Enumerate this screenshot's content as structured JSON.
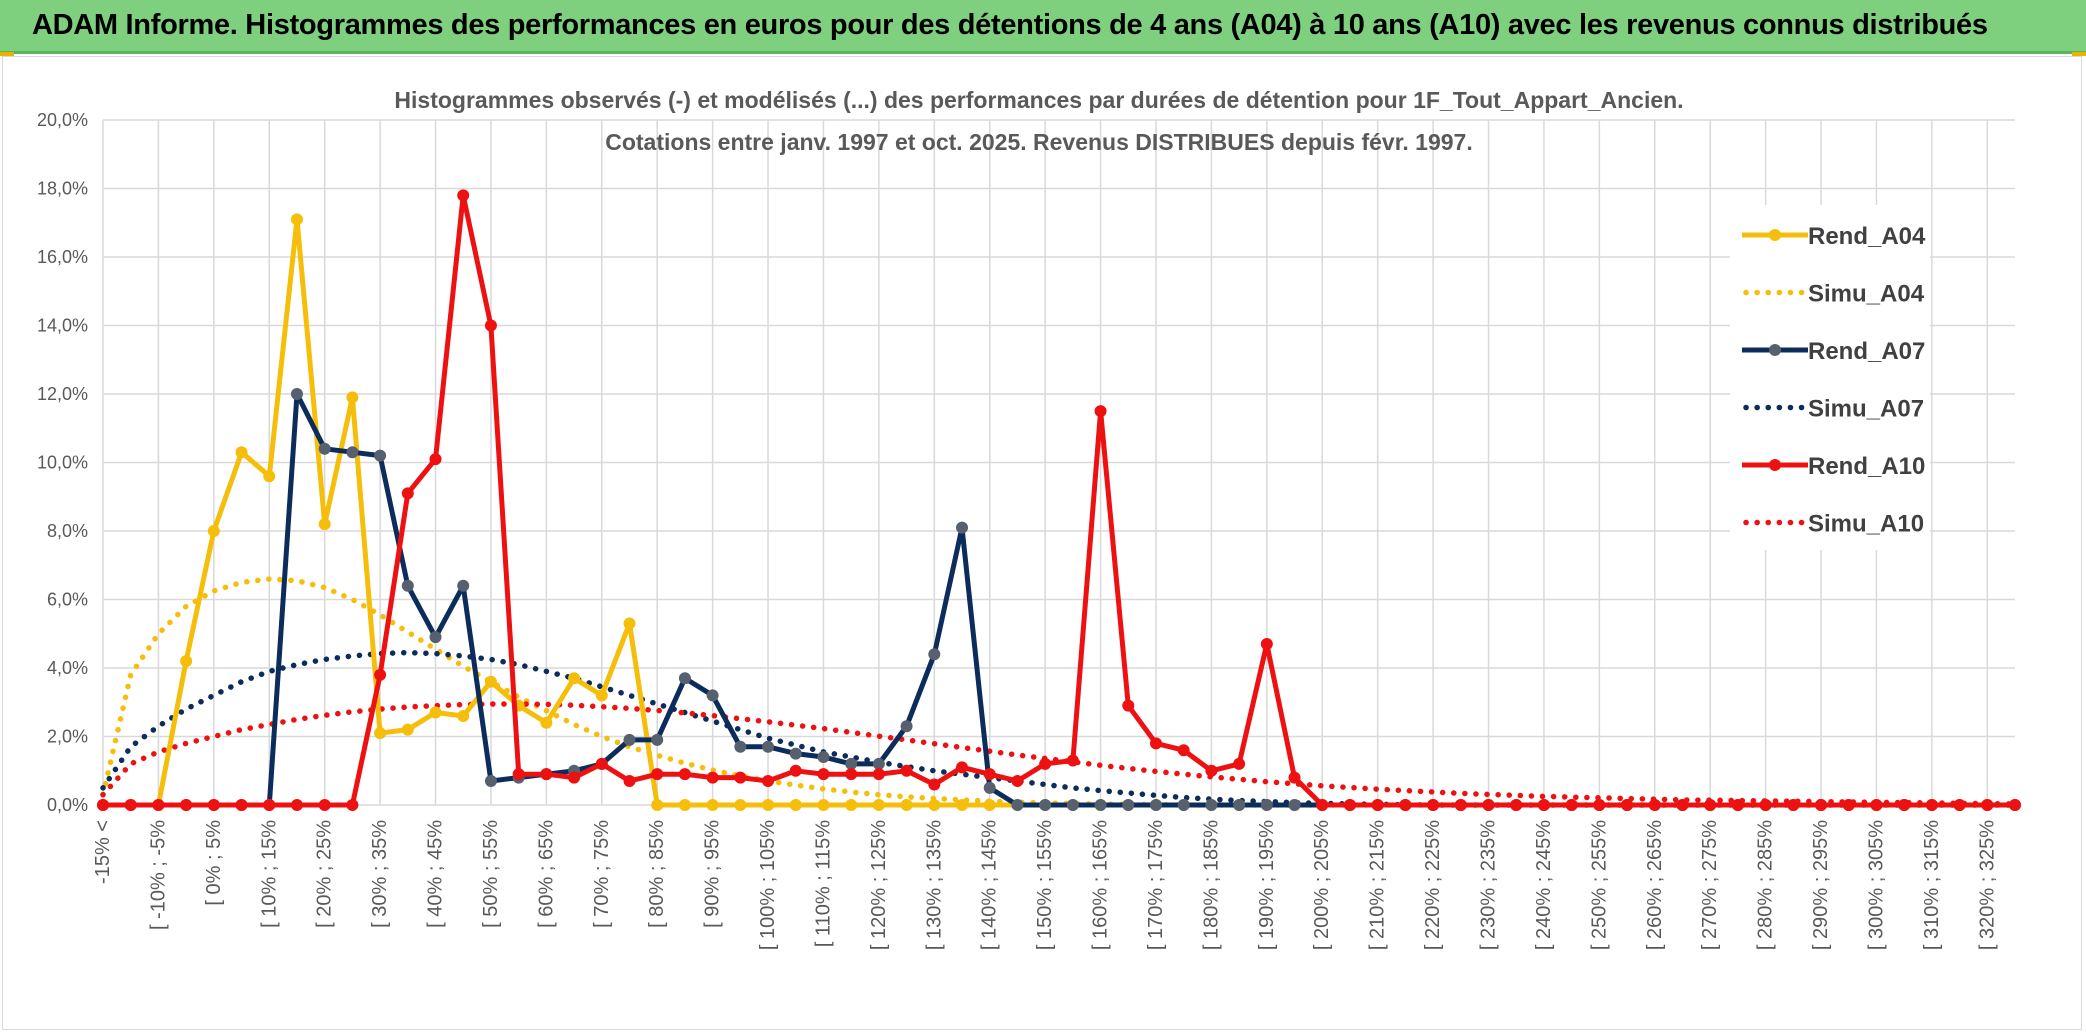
{
  "banner": {
    "title": "ADAM Informe. Histogrammes des performances en euros pour des détentions de 4 ans (A04) à 10 ans (A10) avec les revenus connus distribués"
  },
  "colors": {
    "banner_bg": "#7ed07e",
    "grid": "#d9d9d9",
    "series_A04": "#f5be0b",
    "series_A07": "#0c2c5c",
    "series_A07_marker": "#56606e",
    "series_A10": "#ee1111"
  },
  "chart_data": {
    "type": "line",
    "title_line1": "Histogrammes observés (-) et modélisés (...) des performances par durées de détention pour 1F_Tout_Appart_Ancien.",
    "title_line2": "Cotations entre janv. 1997 et oct. 2025. Revenus DISTRIBUES depuis févr. 1997.",
    "ylim": [
      0,
      20
    ],
    "y_ticks": [
      "0,0%",
      "2,0%",
      "4,0%",
      "6,0%",
      "8,0%",
      "10,0%",
      "12,0%",
      "14,0%",
      "16,0%",
      "18,0%",
      "20,0%"
    ],
    "x_labels": [
      "-15% <",
      "[ -10% ; -5%",
      "[ 0% ; 5%",
      "[ 10% ; 15%",
      "[ 20% ; 25%",
      "[ 30% ; 35%",
      "[ 40% ; 45%",
      "[ 50% ; 55%",
      "[ 60% ; 65%",
      "[ 70% ; 75%",
      "[ 80% ; 85%",
      "[ 90% ; 95%",
      "[ 100% ; 105%",
      "[ 110% ; 115%",
      "[ 120% ; 125%",
      "[ 130% ; 135%",
      "[ 140% ; 145%",
      "[ 150% ; 155%",
      "[ 160% ; 165%",
      "[ 170% ; 175%",
      "[ 180% ; 185%",
      "[ 190% ; 195%",
      "[ 200% ; 205%",
      "[ 210% ; 215%",
      "[ 220% ; 225%",
      "[ 230% ; 235%",
      "[ 240% ; 245%",
      "[ 250% ; 255%",
      "[ 260% ; 265%",
      "[ 270% ; 275%",
      "[ 280% ; 285%",
      "[ 290% ; 295%",
      "[ 300% ; 305%",
      "[ 310% ; 315%",
      "[ 320% ; 325%"
    ],
    "x_points": 70,
    "series": [
      {
        "name": "Rend_A04",
        "style": "solid",
        "values": [
          0,
          0,
          0,
          4.2,
          8.0,
          10.3,
          9.6,
          17.1,
          8.2,
          11.9,
          2.1,
          2.2,
          2.7,
          2.6,
          3.6,
          2.9,
          2.4,
          3.7,
          3.2,
          5.3,
          0,
          0,
          0,
          0,
          0,
          0,
          0,
          0,
          0,
          0,
          0,
          0,
          0,
          0,
          0,
          0,
          0,
          0,
          0,
          0,
          0,
          0,
          0,
          0,
          0,
          0,
          0,
          0,
          0,
          0,
          0,
          0,
          0,
          0,
          0,
          0,
          0,
          0,
          0,
          0,
          0,
          0,
          0,
          0,
          0,
          0,
          0,
          0,
          0,
          0
        ]
      },
      {
        "name": "Simu_A04",
        "style": "dotted",
        "values": [
          0.3,
          3.8,
          5.0,
          5.8,
          6.25,
          6.5,
          6.6,
          6.55,
          6.35,
          6.0,
          5.55,
          5.05,
          4.55,
          4.05,
          3.6,
          3.15,
          2.75,
          2.35,
          2.0,
          1.7,
          1.45,
          1.22,
          1.02,
          0.85,
          0.7,
          0.58,
          0.47,
          0.38,
          0.3,
          0.24,
          0.19,
          0.15,
          0.11,
          0.08,
          0.06,
          0.04,
          0.03,
          0.02,
          0.01,
          0,
          0,
          0,
          0,
          0,
          0,
          0,
          0,
          0,
          0,
          0,
          0,
          0,
          0,
          0,
          0,
          0,
          0,
          0,
          0,
          0,
          0,
          0,
          0,
          0,
          0,
          0,
          0,
          0,
          0,
          0
        ]
      },
      {
        "name": "Rend_A07",
        "style": "solid",
        "values": [
          0,
          0,
          0,
          0,
          0,
          0,
          0,
          12.0,
          10.4,
          10.3,
          10.2,
          6.4,
          4.9,
          6.4,
          0.7,
          0.8,
          0.9,
          1.0,
          1.2,
          1.9,
          1.9,
          3.7,
          3.2,
          1.7,
          1.7,
          1.5,
          1.4,
          1.2,
          1.2,
          2.3,
          4.4,
          8.1,
          0.5,
          0,
          0,
          0,
          0,
          0,
          0,
          0,
          0,
          0,
          0,
          0,
          0,
          0,
          0,
          0,
          0,
          0,
          0,
          0,
          0,
          0,
          0,
          0,
          0,
          0,
          0,
          0,
          0,
          0,
          0,
          0,
          0,
          0,
          0,
          0,
          0,
          0
        ]
      },
      {
        "name": "Simu_A07",
        "style": "dotted",
        "values": [
          0.5,
          1.7,
          2.3,
          2.8,
          3.2,
          3.6,
          3.9,
          4.1,
          4.25,
          4.35,
          4.42,
          4.45,
          4.42,
          4.35,
          4.25,
          4.1,
          3.9,
          3.7,
          3.45,
          3.2,
          2.95,
          2.7,
          2.45,
          2.2,
          1.95,
          1.75,
          1.55,
          1.4,
          1.25,
          1.12,
          1.0,
          0.9,
          0.8,
          0.7,
          0.6,
          0.5,
          0.42,
          0.35,
          0.28,
          0.22,
          0.17,
          0.13,
          0.1,
          0.07,
          0.05,
          0.03,
          0.02,
          0.01,
          0,
          0,
          0,
          0,
          0,
          0,
          0,
          0,
          0,
          0,
          0,
          0,
          0,
          0,
          0,
          0,
          0,
          0,
          0,
          0,
          0,
          0
        ]
      },
      {
        "name": "Rend_A10",
        "style": "solid",
        "values": [
          0,
          0,
          0,
          0,
          0,
          0,
          0,
          0,
          0,
          0,
          3.8,
          9.1,
          10.1,
          17.8,
          14.0,
          0.9,
          0.9,
          0.8,
          1.2,
          0.7,
          0.9,
          0.9,
          0.8,
          0.8,
          0.7,
          1.0,
          0.9,
          0.9,
          0.9,
          1.0,
          0.6,
          1.1,
          0.9,
          0.7,
          1.2,
          1.3,
          11.5,
          2.9,
          1.8,
          1.6,
          1.0,
          1.2,
          4.7,
          0.8,
          0,
          0,
          0,
          0,
          0,
          0,
          0,
          0,
          0,
          0,
          0,
          0,
          0,
          0,
          0,
          0,
          0,
          0,
          0,
          0,
          0,
          0,
          0,
          0,
          0,
          0
        ]
      },
      {
        "name": "Simu_A10",
        "style": "dotted",
        "values": [
          0.3,
          1.2,
          1.55,
          1.8,
          2.0,
          2.2,
          2.35,
          2.5,
          2.62,
          2.72,
          2.8,
          2.86,
          2.9,
          2.93,
          2.95,
          2.95,
          2.94,
          2.91,
          2.87,
          2.82,
          2.76,
          2.69,
          2.61,
          2.52,
          2.43,
          2.33,
          2.23,
          2.12,
          2.01,
          1.9,
          1.79,
          1.68,
          1.57,
          1.46,
          1.36,
          1.26,
          1.16,
          1.07,
          0.98,
          0.9,
          0.82,
          0.75,
          0.68,
          0.62,
          0.56,
          0.51,
          0.46,
          0.42,
          0.38,
          0.34,
          0.31,
          0.28,
          0.25,
          0.23,
          0.21,
          0.19,
          0.17,
          0.15,
          0.14,
          0.13,
          0.12,
          0.11,
          0.1,
          0.09,
          0.08,
          0.07,
          0.06,
          0.05,
          0.04,
          0.03
        ]
      }
    ],
    "legend_position": "top-right"
  }
}
